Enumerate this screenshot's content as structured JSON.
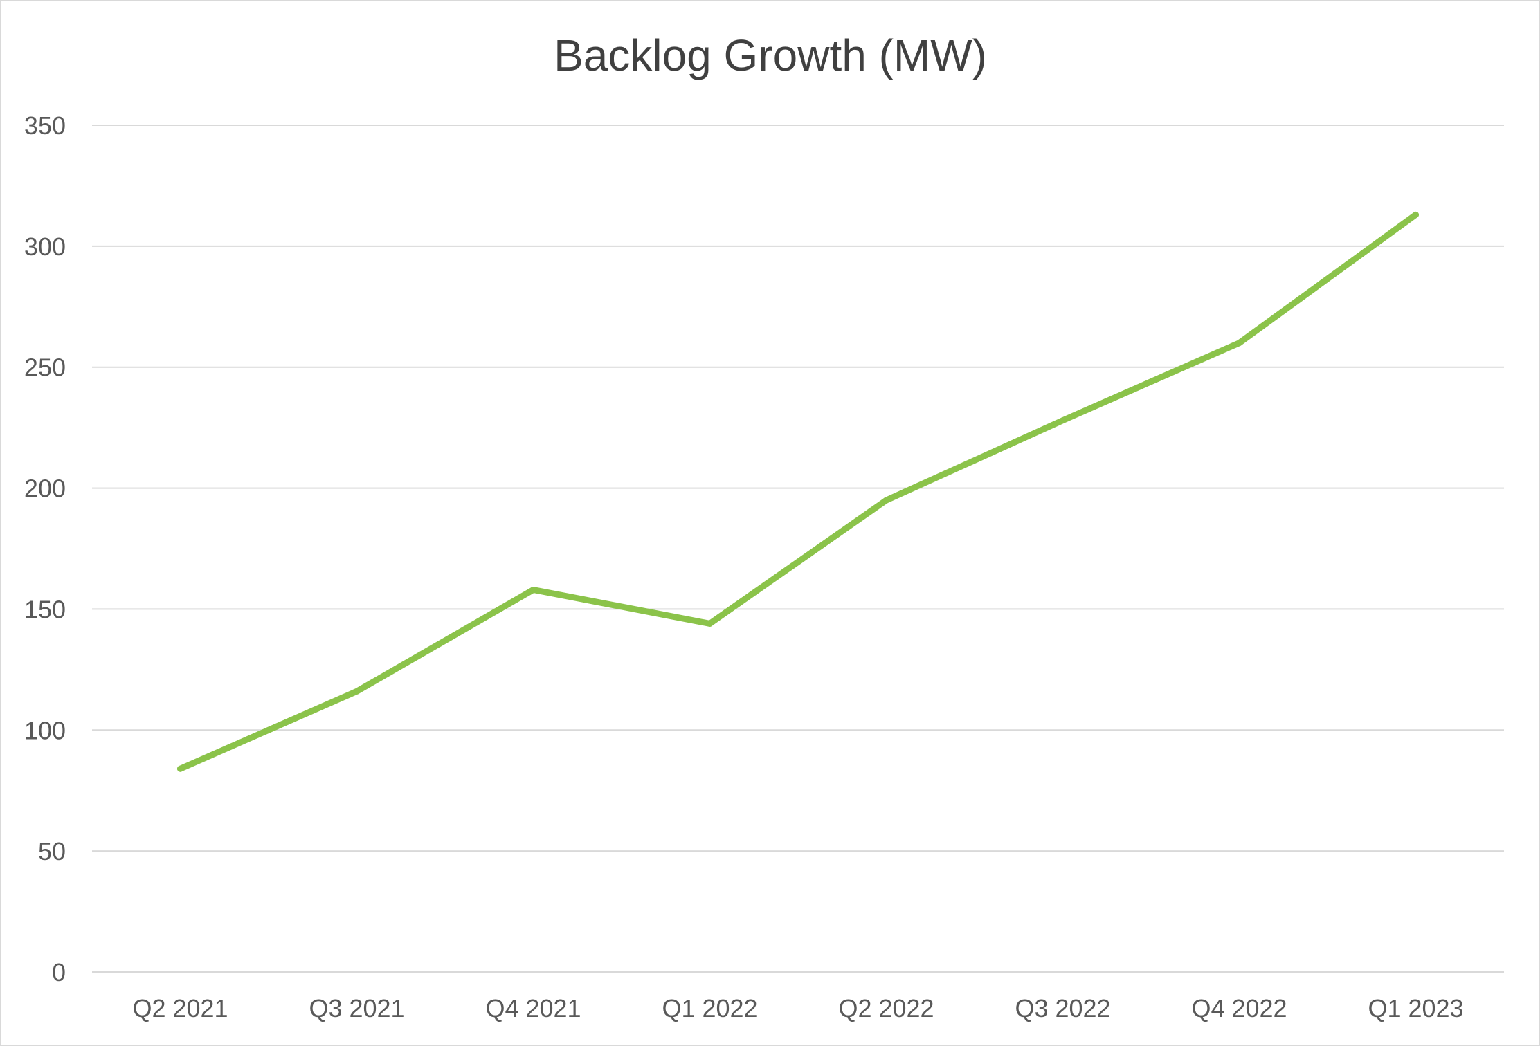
{
  "chart_data": {
    "type": "line",
    "title": "Backlog Growth (MW)",
    "xlabel": "",
    "ylabel": "",
    "categories": [
      "Q2 2021",
      "Q3 2021",
      "Q4 2021",
      "Q1 2022",
      "Q2 2022",
      "Q3 2022",
      "Q4 2022",
      "Q1 2023"
    ],
    "series": [
      {
        "values": [
          84,
          116,
          158,
          144,
          195,
          228,
          260,
          313
        ],
        "color": "#8BC34A"
      }
    ],
    "ylim": [
      0,
      350
    ],
    "yticks": [
      "0",
      "50",
      "100",
      "150",
      "200",
      "250",
      "300",
      "350"
    ],
    "grid": true,
    "legend": "none"
  }
}
